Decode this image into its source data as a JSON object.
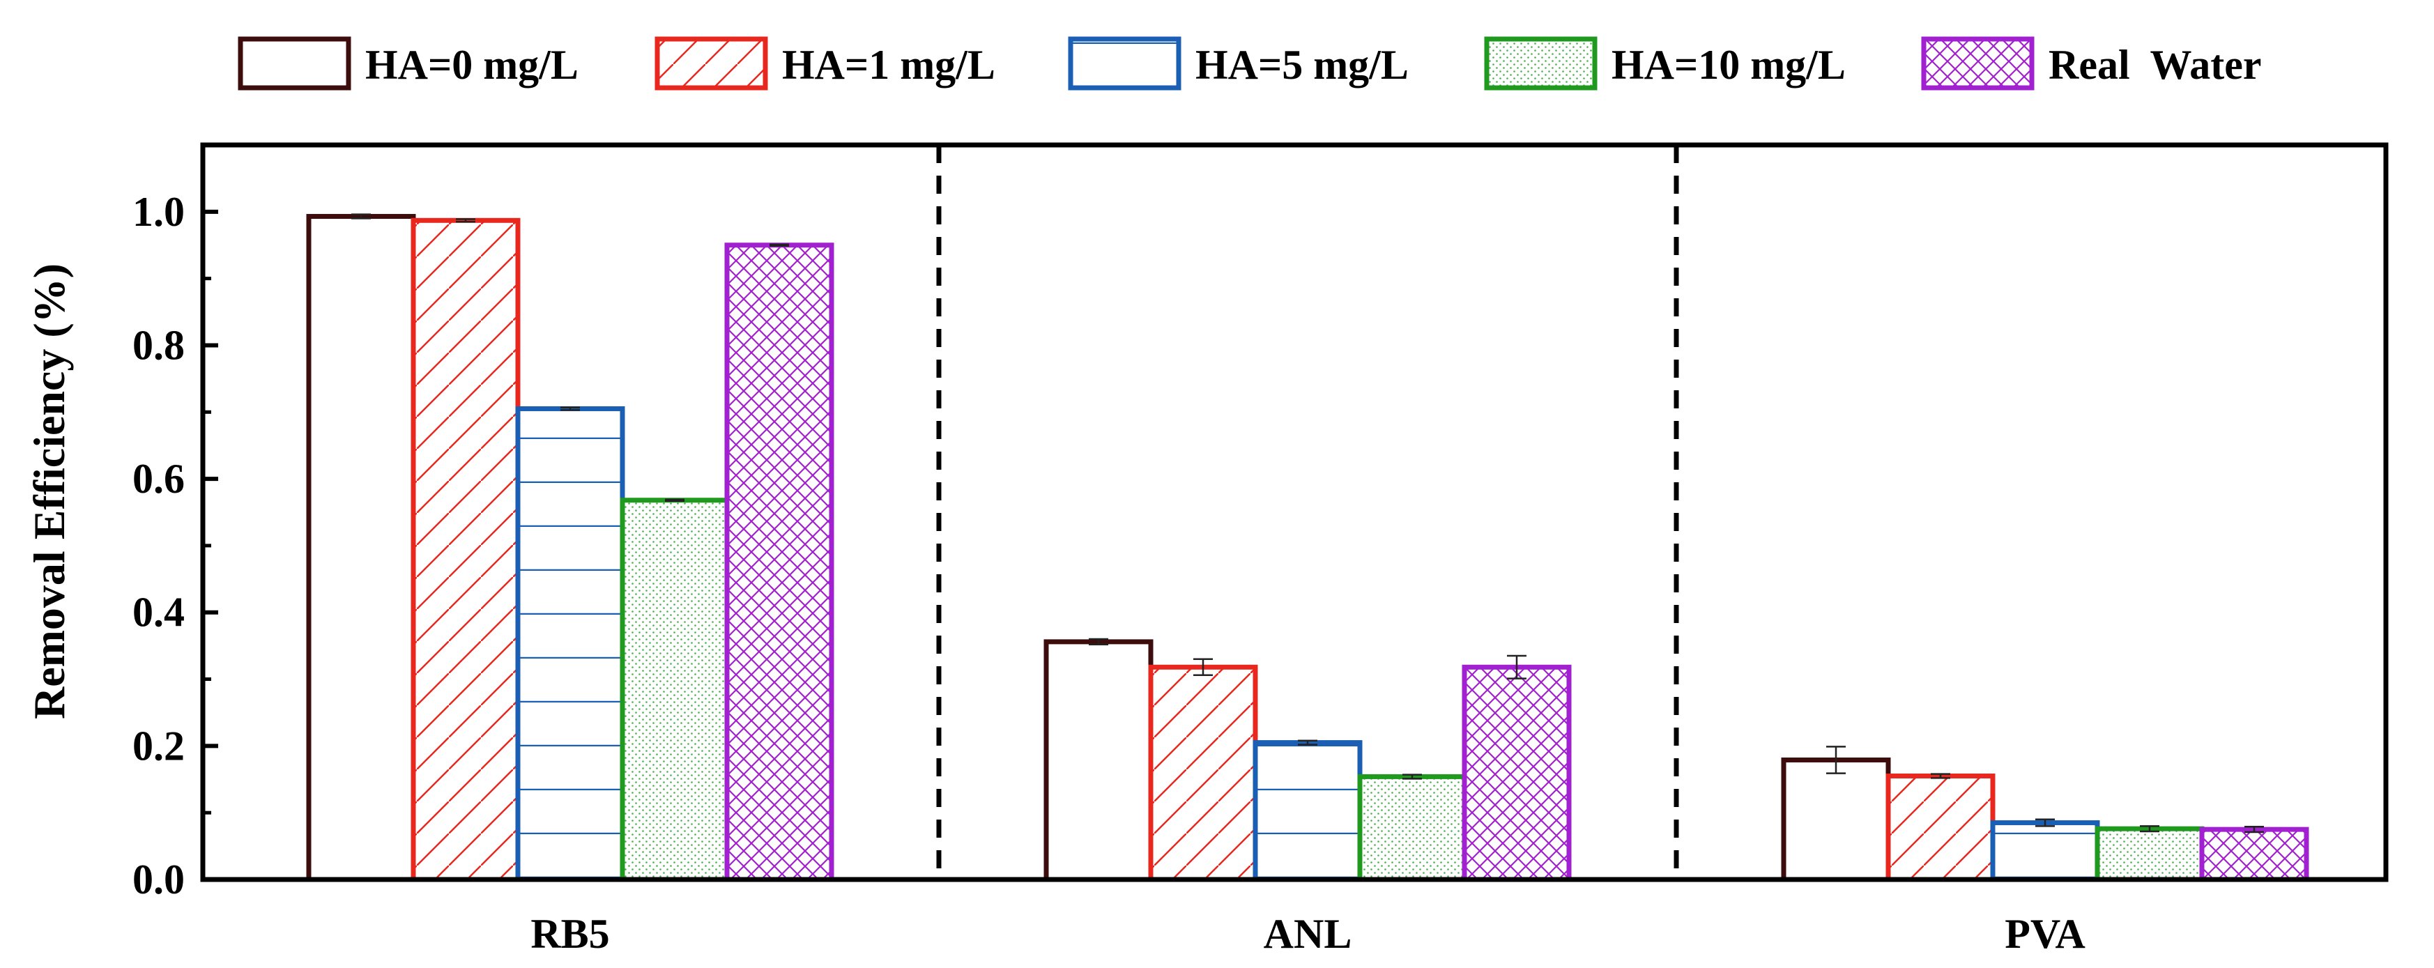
{
  "chart_data": {
    "type": "bar",
    "title": "",
    "xlabel": "",
    "ylabel": "Removal Efficiency (%)",
    "ylim": [
      0,
      1.1
    ],
    "yticks": [
      "0.0",
      "0.2",
      "0.4",
      "0.6",
      "0.8",
      "1.0"
    ],
    "categories": [
      "RB5",
      "ANL",
      "PVA"
    ],
    "legend_position": "top",
    "series": [
      {
        "name": "HA=0 mg/L",
        "color": "#3d0c0c",
        "pattern": "none",
        "values": [
          0.993,
          0.356,
          0.179
        ],
        "errors": [
          0.003,
          0.004,
          0.02
        ]
      },
      {
        "name": "HA=1 mg/L",
        "color": "#e8281e",
        "pattern": "diagonal",
        "values": [
          0.987,
          0.318,
          0.155
        ],
        "errors": [
          0.002,
          0.012,
          0.003
        ]
      },
      {
        "name": "HA=5 mg/L",
        "color": "#1a5fb4",
        "pattern": "horizontal",
        "values": [
          0.705,
          0.205,
          0.085
        ],
        "errors": [
          0.002,
          0.003,
          0.005
        ]
      },
      {
        "name": "HA=10 mg/L",
        "color": "#1f9a1f",
        "pattern": "dots",
        "values": [
          0.568,
          0.154,
          0.076
        ],
        "errors": [
          0.001,
          0.003,
          0.004
        ]
      },
      {
        "name": "Real  Water",
        "color": "#a120d0",
        "pattern": "crosshatch",
        "values": [
          0.95,
          0.318,
          0.075
        ],
        "errors": [
          0.001,
          0.017,
          0.004
        ]
      }
    ]
  }
}
